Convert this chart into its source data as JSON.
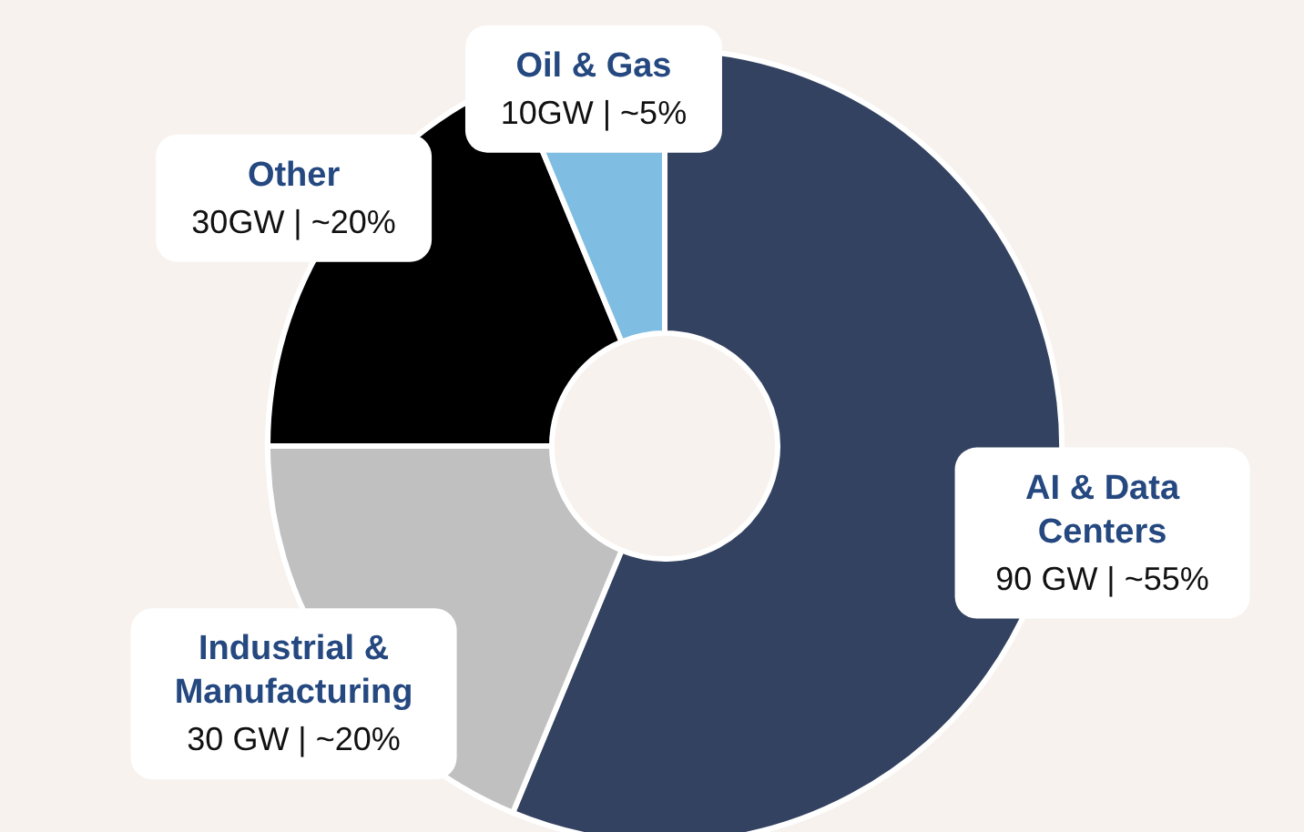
{
  "chart_data": {
    "type": "donut",
    "categories": [
      "AI & Data Centers",
      "Industrial & Manufacturing",
      "Other",
      "Oil & Gas"
    ],
    "values": [
      90,
      30,
      30,
      10
    ],
    "colors": [
      "#334260",
      "#c0c0c0",
      "#000000",
      "#7fbde2"
    ],
    "value_labels": [
      "90 GW | ~55%",
      "30 GW | ~20%",
      "30GW | ~20%",
      "10GW | ~5%"
    ]
  }
}
